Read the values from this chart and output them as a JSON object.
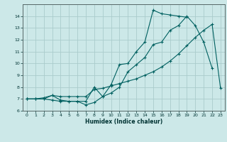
{
  "title": "",
  "xlabel": "Humidex (Indice chaleur)",
  "ylabel": "",
  "bg_color": "#cce8e8",
  "grid_color": "#aacccc",
  "line_color": "#006060",
  "xlim": [
    -0.5,
    23.5
  ],
  "ylim": [
    6,
    15.0
  ],
  "xticks": [
    0,
    1,
    2,
    3,
    4,
    5,
    6,
    7,
    8,
    9,
    10,
    11,
    12,
    13,
    14,
    15,
    16,
    17,
    18,
    19,
    20,
    21,
    22,
    23
  ],
  "yticks": [
    6,
    7,
    8,
    9,
    10,
    11,
    12,
    13,
    14
  ],
  "line1_x": [
    0,
    1,
    2,
    3,
    4,
    5,
    6,
    7,
    8,
    9,
    10,
    11,
    12,
    13,
    14,
    15,
    16,
    17,
    18,
    19,
    20,
    21,
    22
  ],
  "line1_y": [
    7.0,
    7.0,
    7.0,
    6.9,
    6.8,
    6.8,
    6.8,
    6.5,
    6.7,
    7.2,
    7.5,
    8.0,
    9.3,
    9.9,
    10.5,
    11.6,
    11.8,
    12.8,
    13.2,
    14.0,
    13.2,
    11.8,
    9.6
  ],
  "line2_x": [
    0,
    1,
    2,
    3,
    4,
    5,
    6,
    7,
    8,
    9,
    10,
    11,
    12,
    13,
    14,
    15,
    16,
    17,
    18,
    19,
    20,
    21,
    22,
    23
  ],
  "line2_y": [
    7.0,
    7.0,
    7.1,
    7.3,
    7.2,
    7.2,
    7.2,
    7.2,
    7.8,
    7.9,
    8.1,
    8.3,
    8.5,
    8.7,
    9.0,
    9.3,
    9.7,
    10.2,
    10.8,
    11.5,
    12.2,
    12.8,
    13.3,
    7.9
  ],
  "line3_x": [
    0,
    1,
    2,
    3,
    4,
    5,
    6,
    7,
    8,
    9,
    10,
    11,
    12,
    13,
    14,
    15,
    16,
    17,
    18,
    19
  ],
  "line3_y": [
    7.0,
    7.0,
    7.0,
    7.3,
    6.9,
    6.8,
    6.8,
    6.8,
    8.0,
    7.2,
    8.2,
    9.9,
    10.0,
    11.0,
    11.8,
    14.5,
    14.2,
    14.1,
    14.0,
    13.9
  ]
}
